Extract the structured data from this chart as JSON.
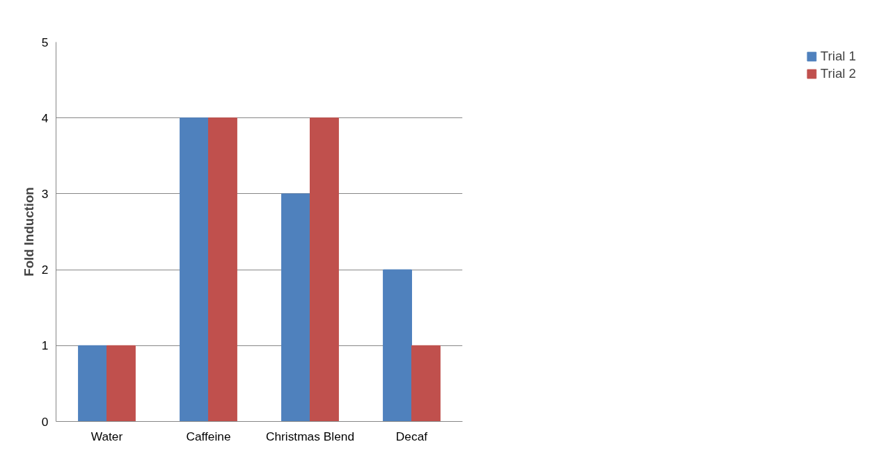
{
  "chart_data": {
    "type": "bar",
    "ylabel": "Fold Induction",
    "categories": [
      "Water",
      "Caffeine",
      "Christmas Blend",
      "Decaf"
    ],
    "series": [
      {
        "name": "Trial 1",
        "color": "#4f81bd",
        "values": [
          1,
          4,
          3,
          2
        ]
      },
      {
        "name": "Trial 2",
        "color": "#c0504d",
        "values": [
          1,
          4,
          4,
          1
        ]
      }
    ],
    "ylim": [
      0,
      5
    ],
    "yticks": [
      0,
      1,
      2,
      3,
      4,
      5
    ],
    "grid": "y",
    "legend": "right"
  }
}
